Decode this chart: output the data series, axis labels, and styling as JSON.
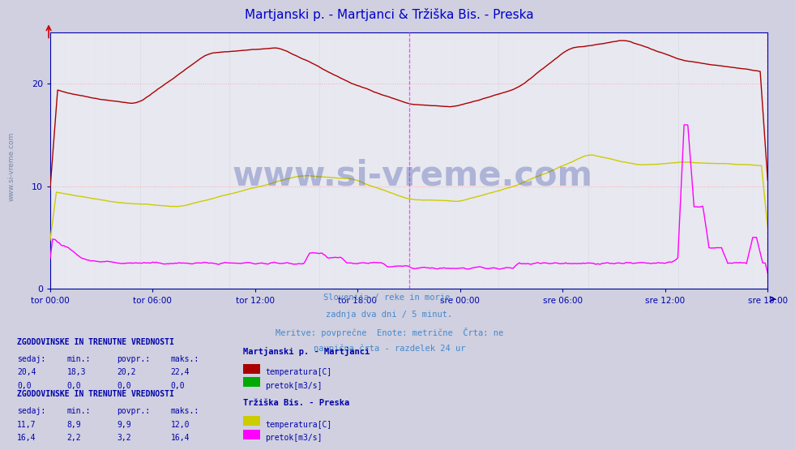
{
  "title": "Martjanski p. - Martjanci & Tržiška Bis. - Preska",
  "title_color": "#0000cc",
  "bg_color": "#d0d0e0",
  "plot_bg_color": "#e8e8f0",
  "ylim": [
    0,
    25
  ],
  "yticks": [
    0,
    10,
    20
  ],
  "xlabel_labels": [
    "tor 00:00",
    "tor 06:00",
    "tor 12:00",
    "tor 18:00",
    "sre 00:00",
    "sre 06:00",
    "sre 12:00",
    "sre 18:00"
  ],
  "n_points": 576,
  "subtitle_lines": [
    "Slovenija / reke in morje.",
    "zadnja dva dni / 5 minut.",
    "Meritve: povprečne  Enote: metrične  Črta: ne",
    "navpična črta - razdelek 24 ur"
  ],
  "subtitle_color": "#4488cc",
  "legend_title1": "Martjanski p. - Martjanci",
  "legend_title2": "Tržiška Bis. - Preska",
  "legend_color": "#0000aa",
  "table1_header": "ZGODOVINSKE IN TRENUTNE VREDNOSTI",
  "table1_cols": [
    "sedaj:",
    "min.:",
    "povpr.:",
    "maks.:"
  ],
  "table1_row1": [
    "20,4",
    "18,3",
    "20,2",
    "22,4"
  ],
  "table1_row2": [
    "0,0",
    "0,0",
    "0,0",
    "0,0"
  ],
  "table2_header": "ZGODOVINSKE IN TRENUTNE VREDNOSTI",
  "table2_cols": [
    "sedaj:",
    "min.:",
    "povpr.:",
    "maks.:"
  ],
  "table2_row1": [
    "11,7",
    "8,9",
    "9,9",
    "12,0"
  ],
  "table2_row2": [
    "16,4",
    "2,2",
    "3,2",
    "16,4"
  ],
  "color_red": "#aa0000",
  "color_green": "#00aa00",
  "color_yellow": "#cccc00",
  "color_magenta": "#ff00ff",
  "watermark_color": "#8888aa",
  "watermark_text": "www.si-vreme.com"
}
